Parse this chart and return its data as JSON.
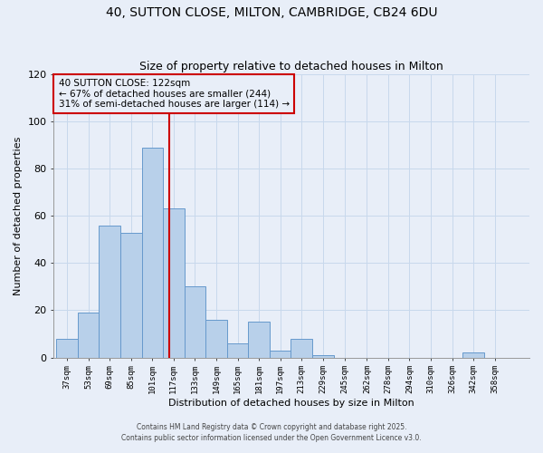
{
  "title1": "40, SUTTON CLOSE, MILTON, CAMBRIDGE, CB24 6DU",
  "title2": "Size of property relative to detached houses in Milton",
  "xlabel": "Distribution of detached houses by size in Milton",
  "ylabel": "Number of detached properties",
  "bin_labels": [
    "37sqm",
    "53sqm",
    "69sqm",
    "85sqm",
    "101sqm",
    "117sqm",
    "133sqm",
    "149sqm",
    "165sqm",
    "181sqm",
    "197sqm",
    "213sqm",
    "229sqm",
    "245sqm",
    "262sqm",
    "278sqm",
    "294sqm",
    "310sqm",
    "326sqm",
    "342sqm",
    "358sqm"
  ],
  "bin_edges": [
    37,
    53,
    69,
    85,
    101,
    117,
    133,
    149,
    165,
    181,
    197,
    213,
    229,
    245,
    262,
    278,
    294,
    310,
    326,
    342,
    358,
    374
  ],
  "bar_heights": [
    8,
    19,
    56,
    53,
    89,
    63,
    30,
    16,
    6,
    15,
    3,
    8,
    1,
    0,
    0,
    0,
    0,
    0,
    0,
    2,
    0
  ],
  "bar_color": "#b8d0ea",
  "bar_edge_color": "#6699cc",
  "vline_x": 122,
  "vline_color": "#cc0000",
  "annotation_lines": [
    "40 SUTTON CLOSE: 122sqm",
    "← 67% of detached houses are smaller (244)",
    "31% of semi-detached houses are larger (114) →"
  ],
  "ylim": [
    0,
    120
  ],
  "yticks": [
    0,
    20,
    40,
    60,
    80,
    100,
    120
  ],
  "grid_color": "#c8d8ec",
  "background_color": "#e8eef8",
  "footer1": "Contains HM Land Registry data © Crown copyright and database right 2025.",
  "footer2": "Contains public sector information licensed under the Open Government Licence v3.0."
}
